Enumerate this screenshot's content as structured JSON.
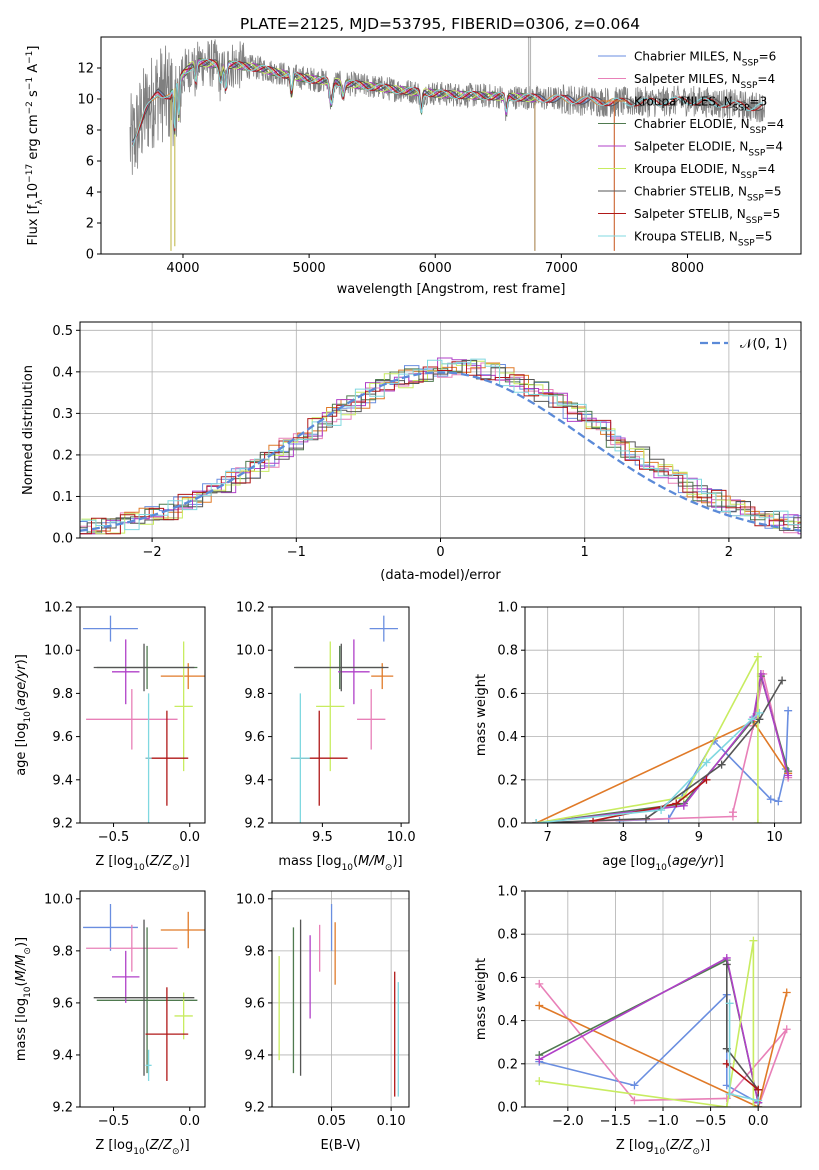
{
  "title": "PLATE=2125, MJD=53795, FIBERID=0306, z=0.064",
  "colors": {
    "Chabrier MILES": "#6a8ee0",
    "Salpeter MILES": "#e880b8",
    "Kroupa MILES": "#e07a28",
    "Chabrier ELODIE": "#4f7a4f",
    "Salpeter ELODIE": "#b040c8",
    "Kroupa ELODIE": "#c8ec60",
    "Chabrier STELIB": "#555555",
    "Salpeter STELIB": "#b01818",
    "Kroupa STELIB": "#80d8e0",
    "data": "#808080",
    "normal": "#5b8ad8"
  },
  "chart_data": [
    {
      "type": "line",
      "xlabel": "wavelength [Angstrom, rest frame]",
      "ylabel": "Flux [f_λ10^-17 erg cm^-2 s^-1 A^-1]",
      "xlim": [
        3350,
        8900
      ],
      "ylim": [
        0,
        14
      ],
      "xticks": [
        4000,
        5000,
        6000,
        7000,
        8000
      ],
      "yticks": [
        0,
        2,
        4,
        6,
        8,
        10,
        12
      ],
      "grid": false,
      "legend_position": "top-right",
      "legend": [
        {
          "name": "Chabrier MILES",
          "nssp": "6"
        },
        {
          "name": "Salpeter MILES",
          "nssp": "4"
        },
        {
          "name": "Kroupa MILES",
          "nssp": "3"
        },
        {
          "name": "Chabrier ELODIE",
          "nssp": "4"
        },
        {
          "name": "Salpeter ELODIE",
          "nssp": "4"
        },
        {
          "name": "Kroupa ELODIE",
          "nssp": "4"
        },
        {
          "name": "Chabrier STELIB",
          "nssp": "5"
        },
        {
          "name": "Salpeter STELIB",
          "nssp": "5"
        },
        {
          "name": "Kroupa STELIB",
          "nssp": "5"
        }
      ],
      "continuum": {
        "x": [
          3600,
          3700,
          3800,
          3900,
          4000,
          4100,
          4200,
          4400,
          4600,
          4800,
          5000,
          5200,
          5500,
          5800,
          6100,
          6400,
          6700,
          7000,
          7400,
          7700,
          8000,
          8300,
          8500
        ],
        "y": [
          7.2,
          9.2,
          10.4,
          10.2,
          11.6,
          12.4,
          12.3,
          12.2,
          12.0,
          11.6,
          11.3,
          11.1,
          10.8,
          10.5,
          10.3,
          10.2,
          10.1,
          10.0,
          9.8,
          9.8,
          9.9,
          9.7,
          9.5
        ]
      },
      "model_ranges": {
        "MILES": [
          3600,
          7420
        ],
        "ELODIE": [
          3900,
          6800
        ],
        "STELIB": [
          3600,
          8600
        ]
      }
    },
    {
      "type": "bar",
      "xlabel": "(data-model)/error",
      "ylabel": "Normed distribution",
      "xlim": [
        -2.5,
        2.5
      ],
      "ylim": [
        0,
        0.52
      ],
      "xticks": [
        -2,
        -1,
        0,
        1,
        2
      ],
      "yticks": [
        0.0,
        0.1,
        0.2,
        0.3,
        0.4,
        0.5
      ],
      "grid": true,
      "legend_position": "top-right",
      "legend": [
        {
          "name": "𝒩(0, 1)"
        }
      ],
      "bin_width": 0.1,
      "envelope_peak": 0.41,
      "envelope_sigma": 1.05,
      "envelope_offset": 0.12
    },
    {
      "type": "scatter",
      "xlabel": "Z [log10(Z/Z⊙)]",
      "ylabel": "age [log10(age/yr)]",
      "xlim": [
        -0.72,
        0.1
      ],
      "ylim": [
        9.2,
        10.2
      ],
      "xticks": [
        -0.5,
        0.0
      ],
      "yticks": [
        9.2,
        9.4,
        9.6,
        9.8,
        10.0,
        10.2
      ],
      "grid": false,
      "points": [
        {
          "model": "Chabrier MILES",
          "x": -0.52,
          "xerr": 0.18,
          "y": 10.1,
          "yerr": 0.06
        },
        {
          "model": "Salpeter MILES",
          "x": -0.38,
          "xerr": 0.3,
          "y": 9.68,
          "yerr": 0.14
        },
        {
          "model": "Kroupa MILES",
          "x": -0.01,
          "xerr": 0.18,
          "y": 9.88,
          "yerr": 0.06
        },
        {
          "model": "Chabrier ELODIE",
          "x": -0.28,
          "xerr": 0.33,
          "y": 9.92,
          "yerr": 0.1
        },
        {
          "model": "Salpeter ELODIE",
          "x": -0.42,
          "xerr": 0.09,
          "y": 9.9,
          "yerr": 0.15
        },
        {
          "model": "Kroupa ELODIE",
          "x": -0.04,
          "xerr": 0.06,
          "y": 9.74,
          "yerr": 0.3
        },
        {
          "model": "Chabrier STELIB",
          "x": -0.3,
          "xerr": 0.33,
          "y": 9.92,
          "yerr": 0.11
        },
        {
          "model": "Salpeter STELIB",
          "x": -0.15,
          "xerr": 0.14,
          "y": 9.5,
          "yerr": 0.22
        },
        {
          "model": "Kroupa STELIB",
          "x": -0.27,
          "xerr": 0.02,
          "y": 9.5,
          "yerr": 0.3
        }
      ]
    },
    {
      "type": "scatter",
      "xlabel": "mass [log10(M/M⊙)]",
      "ylabel": "",
      "xlim": [
        9.18,
        10.05
      ],
      "ylim": [
        9.2,
        10.2
      ],
      "xticks": [
        9.5,
        10.0
      ],
      "yticks": [
        9.2,
        9.4,
        9.6,
        9.8,
        10.0,
        10.2
      ],
      "grid": false,
      "points": [
        {
          "model": "Chabrier MILES",
          "x": 9.89,
          "xerr": 0.09,
          "y": 10.1,
          "yerr": 0.06
        },
        {
          "model": "Salpeter MILES",
          "x": 9.81,
          "xerr": 0.09,
          "y": 9.68,
          "yerr": 0.14
        },
        {
          "model": "Kroupa MILES",
          "x": 9.88,
          "xerr": 0.07,
          "y": 9.88,
          "yerr": 0.06
        },
        {
          "model": "Chabrier ELODIE",
          "x": 9.61,
          "xerr": 0.28,
          "y": 9.92,
          "yerr": 0.1
        },
        {
          "model": "Salpeter ELODIE",
          "x": 9.7,
          "xerr": 0.1,
          "y": 9.9,
          "yerr": 0.15
        },
        {
          "model": "Kroupa ELODIE",
          "x": 9.55,
          "xerr": 0.09,
          "y": 9.74,
          "yerr": 0.3
        },
        {
          "model": "Chabrier STELIB",
          "x": 9.62,
          "xerr": 0.3,
          "y": 9.92,
          "yerr": 0.11
        },
        {
          "model": "Salpeter STELIB",
          "x": 9.48,
          "xerr": 0.18,
          "y": 9.5,
          "yerr": 0.22
        },
        {
          "model": "Kroupa STELIB",
          "x": 9.36,
          "xerr": 0.06,
          "y": 9.5,
          "yerr": 0.3
        }
      ]
    },
    {
      "type": "line",
      "xlabel": "age [log10(age/yr)]",
      "ylabel": "mass weight",
      "xlim": [
        6.7,
        10.35
      ],
      "ylim": [
        0,
        1
      ],
      "xticks": [
        7,
        8,
        9,
        10
      ],
      "yticks": [
        0.0,
        0.2,
        0.4,
        0.6,
        0.8,
        1.0
      ],
      "grid": true,
      "series": [
        {
          "model": "Chabrier MILES",
          "x": [
            7.95,
            8.6,
            9.2,
            9.95,
            10.05,
            10.15,
            10.18
          ],
          "y": [
            0.01,
            0.02,
            0.38,
            0.11,
            0.1,
            0.25,
            0.52
          ]
        },
        {
          "model": "Salpeter MILES",
          "x": [
            6.85,
            9.45,
            9.45,
            9.72,
            9.85,
            10.18
          ],
          "y": [
            0.0,
            0.03,
            0.05,
            0.45,
            0.69,
            0.21
          ]
        },
        {
          "model": "Kroupa MILES",
          "x": [
            6.85,
            9.72,
            10.18
          ],
          "y": [
            0.0,
            0.47,
            0.23
          ]
        },
        {
          "model": "Chabrier ELODIE",
          "x": [
            6.85,
            8.8,
            9.72,
            9.82,
            10.18
          ],
          "y": [
            0.0,
            0.09,
            0.48,
            0.68,
            0.24
          ]
        },
        {
          "model": "Salpeter ELODIE",
          "x": [
            6.85,
            8.8,
            9.72,
            9.82,
            10.18
          ],
          "y": [
            0.0,
            0.08,
            0.49,
            0.69,
            0.22
          ]
        },
        {
          "model": "Kroupa ELODIE",
          "x": [
            6.85,
            8.8,
            9.78,
            9.78
          ],
          "y": [
            0.0,
            0.12,
            0.77,
            0.0
          ]
        },
        {
          "model": "Chabrier STELIB",
          "x": [
            6.85,
            8.3,
            9.3,
            9.8,
            10.1
          ],
          "y": [
            0.0,
            0.02,
            0.27,
            0.48,
            0.66
          ]
        },
        {
          "model": "Salpeter STELIB",
          "x": [
            7.6,
            8.7,
            9.1
          ],
          "y": [
            0.01,
            0.09,
            0.2
          ]
        },
        {
          "model": "Kroupa STELIB",
          "x": [
            6.85,
            8.5,
            9.1,
            9.7,
            9.8
          ],
          "y": [
            0.0,
            0.06,
            0.28,
            0.48,
            0.51
          ]
        }
      ]
    },
    {
      "type": "scatter",
      "xlabel": "Z [log10(Z/Z⊙)]",
      "ylabel": "mass [log10(M/M⊙)]",
      "xlim": [
        -0.72,
        0.1
      ],
      "ylim": [
        9.2,
        10.03
      ],
      "xticks": [
        -0.5,
        0.0
      ],
      "yticks": [
        9.2,
        9.4,
        9.6,
        9.8,
        10.0
      ],
      "grid": false,
      "points": [
        {
          "model": "Chabrier MILES",
          "x": -0.52,
          "xerr": 0.18,
          "y": 9.89,
          "yerr": 0.09
        },
        {
          "model": "Salpeter MILES",
          "x": -0.38,
          "xerr": 0.3,
          "y": 9.81,
          "yerr": 0.09
        },
        {
          "model": "Kroupa MILES",
          "x": -0.01,
          "xerr": 0.18,
          "y": 9.88,
          "yerr": 0.07
        },
        {
          "model": "Chabrier ELODIE",
          "x": -0.28,
          "xerr": 0.33,
          "y": 9.61,
          "yerr": 0.28
        },
        {
          "model": "Salpeter ELODIE",
          "x": -0.42,
          "xerr": 0.09,
          "y": 9.7,
          "yerr": 0.1
        },
        {
          "model": "Kroupa ELODIE",
          "x": -0.04,
          "xerr": 0.06,
          "y": 9.55,
          "yerr": 0.09
        },
        {
          "model": "Chabrier STELIB",
          "x": -0.3,
          "xerr": 0.33,
          "y": 9.62,
          "yerr": 0.3
        },
        {
          "model": "Salpeter STELIB",
          "x": -0.15,
          "xerr": 0.14,
          "y": 9.48,
          "yerr": 0.18
        },
        {
          "model": "Kroupa STELIB",
          "x": -0.27,
          "xerr": 0.02,
          "y": 9.36,
          "yerr": 0.06
        }
      ]
    },
    {
      "type": "scatter",
      "xlabel": "E(B-V)",
      "ylabel": "",
      "xlim": [
        0.0,
        0.115
      ],
      "ylim": [
        9.2,
        10.03
      ],
      "xticks": [
        0.05,
        0.1
      ],
      "yticks": [
        9.2,
        9.4,
        9.6,
        9.8,
        10.0
      ],
      "grid": true,
      "points": [
        {
          "model": "Chabrier MILES",
          "x": 0.05,
          "y": 9.89,
          "yerr": 0.09
        },
        {
          "model": "Salpeter MILES",
          "x": 0.04,
          "y": 9.81,
          "yerr": 0.09
        },
        {
          "model": "Kroupa MILES",
          "x": 0.053,
          "y": 9.79,
          "yerr": 0.12
        },
        {
          "model": "Chabrier ELODIE",
          "x": 0.018,
          "y": 9.61,
          "yerr": 0.28
        },
        {
          "model": "Salpeter ELODIE",
          "x": 0.032,
          "y": 9.7,
          "yerr": 0.16
        },
        {
          "model": "Kroupa ELODIE",
          "x": 0.006,
          "y": 9.58,
          "yerr": 0.2
        },
        {
          "model": "Chabrier STELIB",
          "x": 0.024,
          "y": 9.62,
          "yerr": 0.3
        },
        {
          "model": "Salpeter STELIB",
          "x": 0.103,
          "y": 9.48,
          "yerr": 0.24
        },
        {
          "model": "Kroupa STELIB",
          "x": 0.106,
          "y": 9.46,
          "yerr": 0.22
        }
      ]
    },
    {
      "type": "line",
      "xlabel": "Z [log10(Z/Z⊙)]",
      "ylabel": "mass weight",
      "xlim": [
        -2.45,
        0.45
      ],
      "ylim": [
        0,
        1
      ],
      "xticks": [
        -2.0,
        -1.5,
        -1.0,
        -0.5,
        0.0
      ],
      "yticks": [
        0.0,
        0.2,
        0.4,
        0.6,
        0.8,
        1.0
      ],
      "grid": true,
      "series": [
        {
          "model": "Chabrier MILES",
          "x": [
            -2.3,
            -1.3,
            -0.33,
            -0.33,
            0.0,
            0.0
          ],
          "y": [
            0.21,
            0.1,
            0.52,
            0.1,
            0.02,
            0.0
          ]
        },
        {
          "model": "Salpeter MILES",
          "x": [
            -2.3,
            -1.3,
            -0.33,
            0.3,
            0.0
          ],
          "y": [
            0.57,
            0.03,
            0.04,
            0.36,
            0.0
          ]
        },
        {
          "model": "Kroupa MILES",
          "x": [
            -2.3,
            0.0,
            0.3
          ],
          "y": [
            0.47,
            0.0,
            0.53
          ]
        },
        {
          "model": "Chabrier ELODIE",
          "x": [
            -2.3,
            -0.33,
            0.0
          ],
          "y": [
            0.24,
            0.68,
            0.02
          ]
        },
        {
          "model": "Salpeter ELODIE",
          "x": [
            -2.3,
            -0.33,
            0.0
          ],
          "y": [
            0.22,
            0.69,
            0.02
          ]
        },
        {
          "model": "Kroupa ELODIE",
          "x": [
            -2.3,
            -0.33,
            -0.05,
            -0.05,
            0.0
          ],
          "y": [
            0.12,
            0.0,
            0.77,
            0.0,
            0.0
          ]
        },
        {
          "model": "Chabrier STELIB",
          "x": [
            -0.33,
            -0.33,
            0.0,
            0.0
          ],
          "y": [
            0.66,
            0.27,
            0.08,
            0.0
          ]
        },
        {
          "model": "Salpeter STELIB",
          "x": [
            -0.33,
            0.0
          ],
          "y": [
            0.2,
            0.08
          ]
        },
        {
          "model": "Kroupa STELIB",
          "x": [
            -0.3,
            -0.3,
            0.0
          ],
          "y": [
            0.48,
            0.06,
            0.03
          ]
        }
      ]
    }
  ]
}
